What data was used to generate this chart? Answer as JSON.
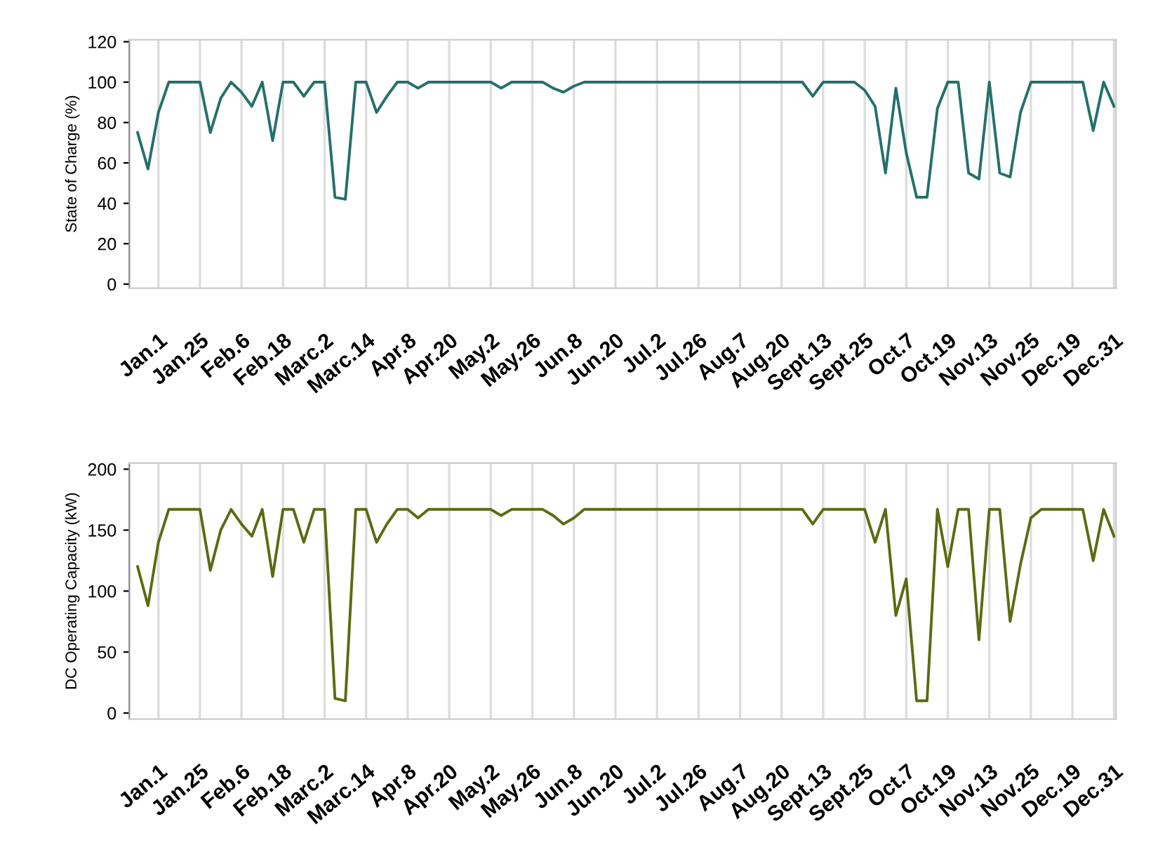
{
  "chart_data": [
    {
      "type": "line",
      "ylabel": "State of Charge (%)",
      "grid": "x",
      "marker": "none",
      "line_style": "solid",
      "ylim": [
        -2,
        121
      ],
      "yticks": [
        0,
        20,
        40,
        60,
        80,
        100,
        120
      ],
      "categories": [
        null,
        null,
        "Jan.1",
        null,
        null,
        null,
        "Jan.25",
        null,
        null,
        null,
        "Feb.6",
        null,
        null,
        null,
        "Feb.18",
        null,
        null,
        null,
        "Marc.2",
        null,
        null,
        null,
        "Marc.14",
        null,
        null,
        null,
        "Apr.8",
        null,
        null,
        null,
        "Apr.20",
        null,
        null,
        null,
        "May.2",
        null,
        null,
        null,
        "May.26",
        null,
        null,
        null,
        "Jun.8",
        null,
        null,
        null,
        "Jun.20",
        null,
        null,
        null,
        "Jul.2",
        null,
        null,
        null,
        "Jul.26",
        null,
        null,
        null,
        "Aug.7",
        null,
        null,
        null,
        "Aug.20",
        null,
        null,
        null,
        "Sept.13",
        null,
        null,
        null,
        "Sept.25",
        null,
        null,
        null,
        "Oct.7",
        null,
        null,
        null,
        "Oct.19",
        null,
        null,
        null,
        "Nov.13",
        null,
        null,
        null,
        "Nov.25",
        null,
        null,
        null,
        "Dec.19",
        null,
        null,
        null,
        "Dec.31"
      ],
      "series": [
        {
          "color": "#24706a",
          "values": [
            75,
            57,
            85,
            100,
            100,
            100,
            100,
            75,
            92,
            100,
            95,
            88,
            100,
            71,
            100,
            100,
            93,
            100,
            100,
            43,
            42,
            100,
            100,
            85,
            93,
            100,
            100,
            97,
            100,
            100,
            100,
            100,
            100,
            100,
            100,
            97,
            100,
            100,
            100,
            100,
            97,
            95,
            98,
            100,
            100,
            100,
            100,
            100,
            100,
            100,
            100,
            100,
            100,
            100,
            100,
            100,
            100,
            100,
            100,
            100,
            100,
            100,
            100,
            100,
            100,
            93,
            100,
            100,
            100,
            100,
            96,
            88,
            55,
            97,
            65,
            43,
            43,
            87,
            100,
            100,
            55,
            52,
            100,
            55,
            53,
            85,
            100,
            100,
            100,
            100,
            100,
            100,
            76,
            100,
            88
          ]
        }
      ]
    },
    {
      "type": "line",
      "ylabel": "DC Operating Capacity (kW)",
      "grid": "x",
      "marker": "none",
      "line_style": "solid",
      "ylim": [
        -5,
        205
      ],
      "yticks": [
        0,
        50,
        100,
        150,
        200
      ],
      "categories": [
        null,
        null,
        "Jan.1",
        null,
        null,
        null,
        "Jan.25",
        null,
        null,
        null,
        "Feb.6",
        null,
        null,
        null,
        "Feb.18",
        null,
        null,
        null,
        "Marc.2",
        null,
        null,
        null,
        "Marc.14",
        null,
        null,
        null,
        "Apr.8",
        null,
        null,
        null,
        "Apr.20",
        null,
        null,
        null,
        "May.2",
        null,
        null,
        null,
        "May.26",
        null,
        null,
        null,
        "Jun.8",
        null,
        null,
        null,
        "Jun.20",
        null,
        null,
        null,
        "Jul.2",
        null,
        null,
        null,
        "Jul.26",
        null,
        null,
        null,
        "Aug.7",
        null,
        null,
        null,
        "Aug.20",
        null,
        null,
        null,
        "Sept.13",
        null,
        null,
        null,
        "Sept.25",
        null,
        null,
        null,
        "Oct.7",
        null,
        null,
        null,
        "Oct.19",
        null,
        null,
        null,
        "Nov.13",
        null,
        null,
        null,
        "Nov.25",
        null,
        null,
        null,
        "Dec.19",
        null,
        null,
        null,
        "Dec.31"
      ],
      "series": [
        {
          "color": "#5b6b12",
          "values": [
            120,
            88,
            140,
            167,
            167,
            167,
            167,
            117,
            150,
            167,
            155,
            145,
            167,
            112,
            167,
            167,
            140,
            167,
            167,
            12,
            10,
            167,
            167,
            140,
            155,
            167,
            167,
            160,
            167,
            167,
            167,
            167,
            167,
            167,
            167,
            162,
            167,
            167,
            167,
            167,
            162,
            155,
            160,
            167,
            167,
            167,
            167,
            167,
            167,
            167,
            167,
            167,
            167,
            167,
            167,
            167,
            167,
            167,
            167,
            167,
            167,
            167,
            167,
            167,
            167,
            155,
            167,
            167,
            167,
            167,
            167,
            140,
            167,
            80,
            110,
            10,
            10,
            167,
            120,
            167,
            167,
            60,
            167,
            167,
            75,
            122,
            160,
            167,
            167,
            167,
            167,
            167,
            125,
            167,
            145
          ]
        }
      ]
    }
  ]
}
